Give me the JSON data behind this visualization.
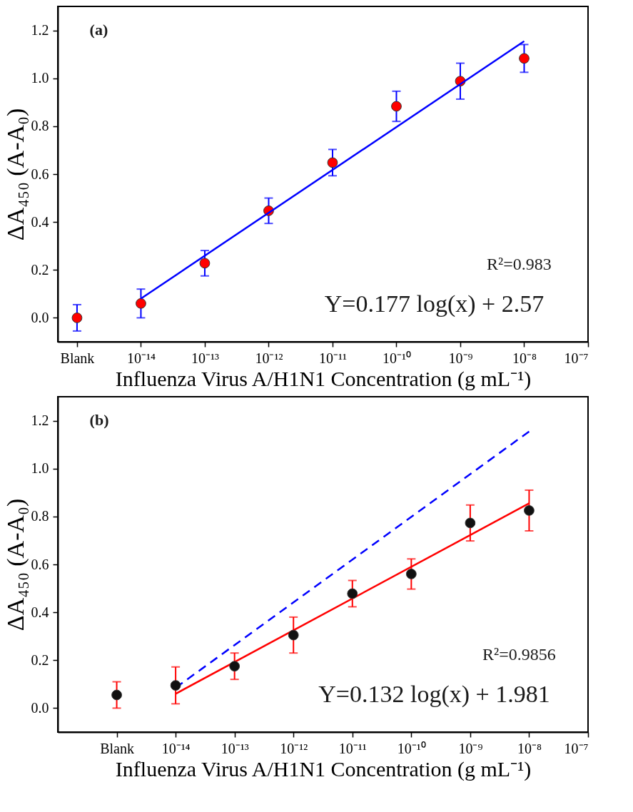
{
  "chart_data": [
    {
      "type": "scatter",
      "xlabel": "Influenza Virus A/H1N1 Concentration (g mL⁻¹)",
      "ylabel": "ΔA₄₅₀ (A-A₀)",
      "annotations": [
        "(a)",
        "R²=0.983",
        "Y=0.177 log(x) + 2.57"
      ],
      "log": "x",
      "xlim": [
        5e-16,
        1e-07
      ],
      "xticks": [
        {
          "value": 1e-15,
          "label": "Blank"
        },
        {
          "value": 1e-14,
          "label": "10⁻¹⁴"
        },
        {
          "value": 1e-13,
          "label": "10⁻¹³"
        },
        {
          "value": 1e-12,
          "label": "10⁻¹²"
        },
        {
          "value": 1e-11,
          "label": "10⁻¹¹"
        },
        {
          "value": 1e-10,
          "label": "10⁻¹⁰"
        },
        {
          "value": 1e-09,
          "label": "10⁻⁹"
        },
        {
          "value": 1e-08,
          "label": "10⁻⁸"
        },
        {
          "value": 1e-07,
          "label": "10⁻⁷"
        }
      ],
      "ylim": [
        -0.1,
        1.3
      ],
      "yticks": [
        {
          "value": 0,
          "label": "0.0"
        },
        {
          "value": 0.2,
          "label": "0.2"
        },
        {
          "value": 0.4,
          "label": "0.4"
        },
        {
          "value": 0.6,
          "label": "0.6"
        },
        {
          "value": 0.8,
          "label": "0.8"
        },
        {
          "value": 1,
          "label": "1.0"
        },
        {
          "value": 1.2,
          "label": "1.2"
        }
      ],
      "grid": false,
      "legend": false,
      "series": [
        {
          "type": "scatter",
          "color": "#ff0000",
          "marker": "circle",
          "x": [
            1e-15,
            1e-14,
            1e-13,
            1e-12,
            1e-11,
            1e-10,
            1e-09,
            1e-08
          ],
          "values": [
            0.0,
            0.06,
            0.228,
            0.447,
            0.648,
            0.883,
            0.988,
            1.083
          ],
          "errors": [
            0.055,
            0.06,
            0.053,
            0.053,
            0.055,
            0.063,
            0.075,
            0.058
          ]
        },
        {
          "type": "line",
          "color": "#0000ff",
          "line_style": "solid",
          "marker": "none",
          "x": [
            1e-14,
            1e-08
          ],
          "values": [
            0.08,
            1.155
          ]
        }
      ]
    },
    {
      "type": "scatter",
      "xlabel": "Influenza Virus A/H1N1 Concentration (g mL⁻¹)",
      "ylabel": "ΔA₄₅₀ (A-A₀)",
      "annotations": [
        "(b)",
        "R²=0.9856",
        "Y=0.132 log(x) + 1.981"
      ],
      "log": "x",
      "xlim": [
        1e-16,
        1e-07
      ],
      "xticks": [
        {
          "value": 1e-15,
          "label": "Blank"
        },
        {
          "value": 1e-14,
          "label": "10⁻¹⁴"
        },
        {
          "value": 1e-13,
          "label": "10⁻¹³"
        },
        {
          "value": 1e-12,
          "label": "10⁻¹²"
        },
        {
          "value": 1e-11,
          "label": "10⁻¹¹"
        },
        {
          "value": 1e-10,
          "label": "10⁻¹⁰"
        },
        {
          "value": 1e-09,
          "label": "10⁻⁹"
        },
        {
          "value": 1e-08,
          "label": "10⁻⁸"
        },
        {
          "value": 1e-07,
          "label": "10⁻⁷"
        }
      ],
      "ylim": [
        -0.1,
        1.3
      ],
      "yticks": [
        {
          "value": 0,
          "label": "0.0"
        },
        {
          "value": 0.2,
          "label": "0.2"
        },
        {
          "value": 0.4,
          "label": "0.4"
        },
        {
          "value": 0.6,
          "label": "0.6"
        },
        {
          "value": 0.8,
          "label": "0.8"
        },
        {
          "value": 1,
          "label": "1.0"
        },
        {
          "value": 1.2,
          "label": "1.2"
        }
      ],
      "grid": false,
      "legend": false,
      "series": [
        {
          "type": "line",
          "color": "#0000ff",
          "line_style": "dashed",
          "marker": "none",
          "x": [
            1e-14,
            1e-08
          ],
          "values": [
            0.085,
            1.155
          ]
        },
        {
          "type": "line",
          "color": "#ff0000",
          "line_style": "solid",
          "marker": "none",
          "x": [
            1e-14,
            1e-08
          ],
          "values": [
            0.06,
            0.855
          ]
        },
        {
          "type": "scatter",
          "color": "#111111",
          "marker": "circle",
          "x": [
            1e-15,
            1e-14,
            1e-13,
            1e-12,
            1e-11,
            1e-10,
            1e-09,
            1e-08
          ],
          "values": [
            0.055,
            0.095,
            0.175,
            0.305,
            0.478,
            0.56,
            0.773,
            0.825
          ],
          "errors": [
            0.055,
            0.077,
            0.055,
            0.075,
            0.055,
            0.063,
            0.075,
            0.085
          ]
        }
      ]
    }
  ]
}
